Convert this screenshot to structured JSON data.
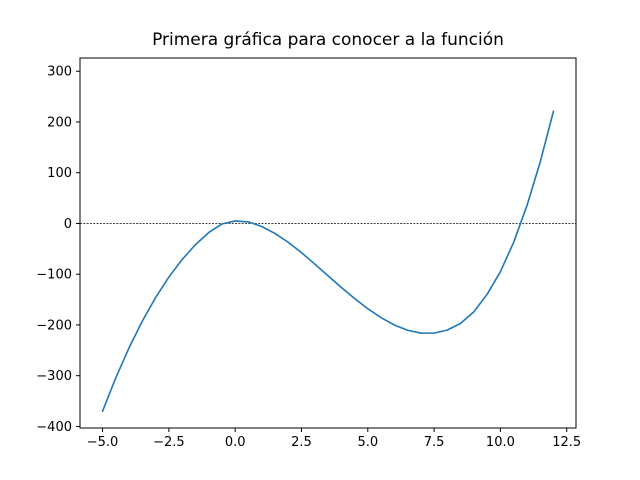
{
  "chart_data": {
    "type": "line",
    "title": "Primera gráfica para conocer a la función",
    "xlabel": "",
    "ylabel": "",
    "xlim": [
      -5.85,
      12.85
    ],
    "ylim": [
      -403.1,
      326.1
    ],
    "x_ticks": [
      -5.0,
      -2.5,
      0.0,
      2.5,
      5.0,
      7.5,
      10.0,
      12.5
    ],
    "x_tick_labels": [
      "−5.0",
      "−2.5",
      "0.0",
      "2.5",
      "5.0",
      "7.5",
      "10.0",
      "12.5"
    ],
    "y_ticks": [
      -400,
      -300,
      -200,
      -100,
      0,
      100,
      200,
      300
    ],
    "y_tick_labels": [
      "−400",
      "−300",
      "−200",
      "−100",
      "0",
      "100",
      "200",
      "300"
    ],
    "hline": {
      "y": 0,
      "style": "dashed",
      "color": "#000000"
    },
    "grid": false,
    "series": [
      {
        "color": "#1f77b4",
        "x": [
          -5,
          -4.5,
          -4,
          -3.5,
          -3,
          -2.5,
          -2,
          -1.5,
          -1,
          -0.5,
          0,
          0.5,
          1,
          1.5,
          2,
          2.5,
          3,
          3.5,
          4,
          4.5,
          5,
          5.5,
          6,
          6.5,
          7,
          7.5,
          8,
          8.5,
          9,
          9.5,
          10,
          10.5,
          11,
          11.5,
          12
        ],
        "y": [
          -370,
          -304.1,
          -245,
          -192.4,
          -146,
          -105.6,
          -71,
          -41.9,
          -18,
          -1.1,
          5,
          3.1,
          -6,
          -19.6,
          -37,
          -57.5,
          -80,
          -103.1,
          -126,
          -147.9,
          -168,
          -185.6,
          -200,
          -210.4,
          -216,
          -216.1,
          -210,
          -196.9,
          -174,
          -139.6,
          -95,
          -37.1,
          35,
          121.1,
          221
        ]
      }
    ]
  }
}
